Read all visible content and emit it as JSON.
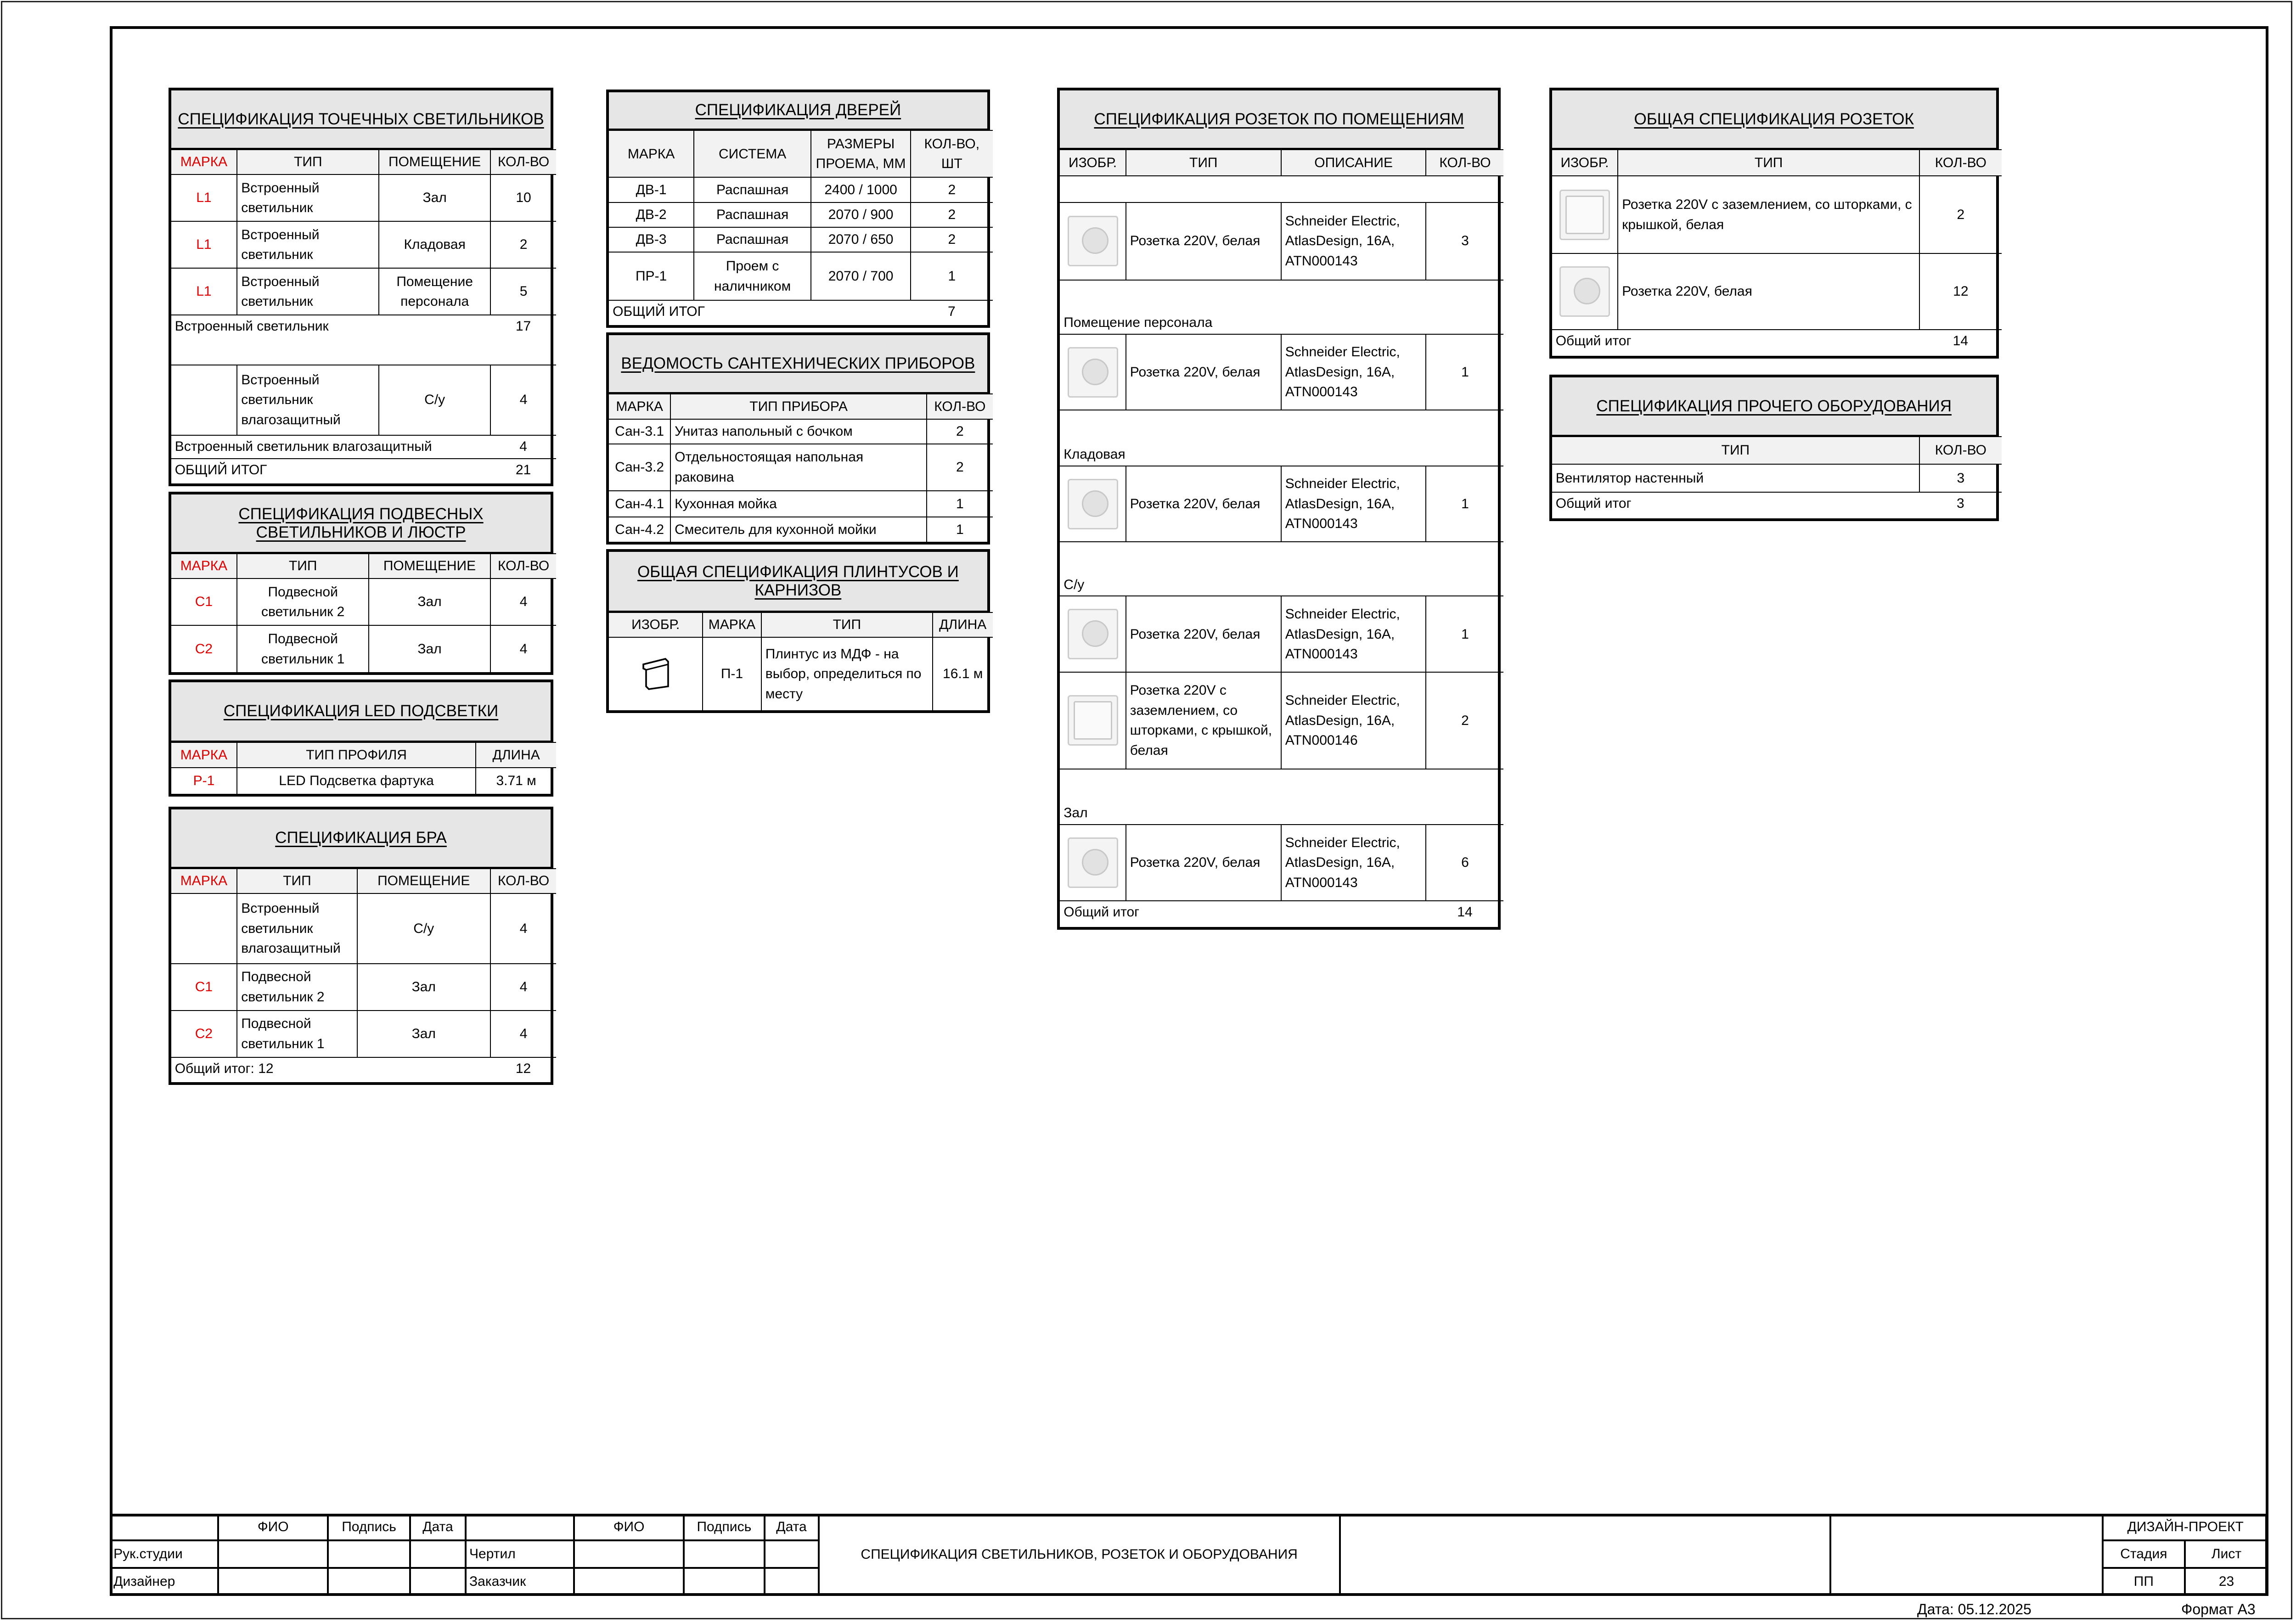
{
  "accent_color": "#e00000",
  "tables": {
    "t1": {
      "title": "СПЕЦИФИКАЦИЯ ТОЧЕЧНЫХ СВЕТИЛЬНИКОВ",
      "columns": [
        "МАРКА",
        "ТИП",
        "ПОМЕЩЕНИЕ",
        "КОЛ-ВО"
      ],
      "rows": [
        {
          "cells": [
            "L1",
            "Встроенный светильник",
            "Зал",
            "10"
          ]
        },
        {
          "cells": [
            "L1",
            "Встроенный светильник",
            "Кладовая",
            "2"
          ]
        },
        {
          "cells": [
            "L1",
            "Встроенный светильник",
            "Помещение персонала",
            "5"
          ]
        },
        {
          "type": "subtotal",
          "label": "Встроенный светильник",
          "value": "17"
        },
        {
          "cells": [
            "",
            "Встроенный светильник влагозащитный",
            "С/у",
            "4"
          ]
        },
        {
          "type": "subtotal",
          "label": "Встроенный светильник влагозащитный",
          "value": "4"
        },
        {
          "type": "subtotal",
          "label": "ОБЩИЙ ИТОГ",
          "value": "21"
        }
      ]
    },
    "t2": {
      "title": "СПЕЦИФИКАЦИЯ ПОДВЕСНЫХ СВЕТИЛЬНИКОВ И ЛЮСТР",
      "columns": [
        "МАРКА",
        "ТИП",
        "ПОМЕЩЕНИЕ",
        "КОЛ-ВО"
      ],
      "rows": [
        {
          "cells": [
            "C1",
            "Подвесной светильник 2",
            "Зал",
            "4"
          ]
        },
        {
          "cells": [
            "C2",
            "Подвесной светильник 1",
            "Зал",
            "4"
          ]
        }
      ]
    },
    "t3": {
      "title": "СПЕЦИФИКАЦИЯ LED ПОДСВЕТКИ",
      "columns": [
        "МАРКА",
        "ТИП ПРОФИЛЯ",
        "ДЛИНА"
      ],
      "rows": [
        {
          "cells": [
            "P-1",
            "LED Подсветка фартука",
            "3.71 м"
          ]
        }
      ]
    },
    "t4": {
      "title": "СПЕЦИФИКАЦИЯ БРА",
      "columns": [
        "МАРКА",
        "ТИП",
        "ПОМЕЩЕНИЕ",
        "КОЛ-ВО"
      ],
      "rows": [
        {
          "cells": [
            "",
            "Встроенный светильник влагозащитный",
            "С/у",
            "4"
          ]
        },
        {
          "cells": [
            "C1",
            "Подвесной светильник 2",
            "Зал",
            "4"
          ]
        },
        {
          "cells": [
            "C2",
            "Подвесной светильник 1",
            "Зал",
            "4"
          ]
        },
        {
          "type": "subtotal",
          "label": "Общий итог: 12",
          "value": "12"
        }
      ]
    },
    "t5": {
      "title": "СПЕЦИФИКАЦИЯ ДВЕРЕЙ",
      "columns": [
        "МАРКА",
        "СИСТЕМА",
        "РАЗМЕРЫ ПРОЕМА, ММ",
        "КОЛ-ВО, ШТ"
      ],
      "rows": [
        {
          "cells": [
            "ДВ-1",
            "Распашная",
            "2400 / 1000",
            "2"
          ]
        },
        {
          "cells": [
            "ДВ-2",
            "Распашная",
            "2070 / 900",
            "2"
          ]
        },
        {
          "cells": [
            "ДВ-3",
            "Распашная",
            "2070 / 650",
            "2"
          ]
        },
        {
          "cells": [
            "ПР-1",
            "Проем с наличником",
            "2070 / 700",
            "1"
          ]
        },
        {
          "type": "subtotal",
          "label": "ОБЩИЙ ИТОГ",
          "value": "7"
        }
      ]
    },
    "t6": {
      "title": "ВЕДОМОСТЬ САНТЕХНИЧЕСКИХ ПРИБОРОВ",
      "columns": [
        "МАРКА",
        "ТИП ПРИБОРА",
        "КОЛ-ВО"
      ],
      "rows": [
        {
          "cells": [
            "Сан-3.1",
            "Унитаз напольный с бочком",
            "2"
          ]
        },
        {
          "cells": [
            "Сан-3.2",
            "Отдельностоящая напольная раковина",
            "2"
          ]
        },
        {
          "cells": [
            "Сан-4.1",
            "Кухонная мойка",
            "1"
          ]
        },
        {
          "cells": [
            "Сан-4.2",
            "Смеситель для кухонной мойки",
            "1"
          ]
        }
      ]
    },
    "t7": {
      "title": "ОБЩАЯ СПЕЦИФИКАЦИЯ ПЛИНТУСОВ И КАРНИЗОВ",
      "columns": [
        "ИЗОБР.",
        "МАРКА",
        "ТИП",
        "ДЛИНА"
      ],
      "rows": [
        {
          "cells": [
            "plinth-icon",
            "П-1",
            "Плинтус из МДФ - на выбор, определиться по месту",
            "16.1 м"
          ]
        }
      ]
    },
    "t8": {
      "title": "СПЕЦИФИКАЦИЯ РОЗЕТОК ПО ПОМЕЩЕНИЯМ",
      "columns": [
        "ИЗОБР.",
        "ТИП",
        "ОПИСАНИЕ",
        "КОЛ-ВО"
      ],
      "rows": [
        {
          "type": "group",
          "label": ""
        },
        {
          "cells": [
            "socket-icon",
            "Розетка 220V, белая",
            "Schneider Electric, AtlasDesign, 16A, ATN000143",
            "3"
          ]
        },
        {
          "type": "group",
          "label": "Помещение персонала"
        },
        {
          "cells": [
            "socket-icon",
            "Розетка 220V, белая",
            "Schneider Electric, AtlasDesign, 16A, ATN000143",
            "1"
          ]
        },
        {
          "type": "group",
          "label": "Кладовая"
        },
        {
          "cells": [
            "socket-icon",
            "Розетка 220V, белая",
            "Schneider Electric, AtlasDesign, 16A, ATN000143",
            "1"
          ]
        },
        {
          "type": "group",
          "label": "С/у"
        },
        {
          "cells": [
            "socket-icon",
            "Розетка 220V, белая",
            "Schneider Electric, AtlasDesign, 16A, ATN000143",
            "1"
          ]
        },
        {
          "cells": [
            "socket-lid-icon",
            "Розетка 220V с заземлением, со шторками, с крышкой, белая",
            "Schneider Electric, AtlasDesign, 16A, ATN000146",
            "2"
          ]
        },
        {
          "type": "group",
          "label": "Зал"
        },
        {
          "cells": [
            "socket-icon",
            "Розетка 220V, белая",
            "Schneider Electric, AtlasDesign, 16A, ATN000143",
            "6"
          ]
        },
        {
          "type": "subtotal",
          "label": "Общий итог",
          "value": "14"
        }
      ]
    },
    "t9": {
      "title": "ОБЩАЯ СПЕЦИФИКАЦИЯ РОЗЕТОК",
      "columns": [
        "ИЗОБР.",
        "ТИП",
        "КОЛ-ВО"
      ],
      "rows": [
        {
          "cells": [
            "socket-lid-icon",
            "Розетка 220V с заземлением, со шторками, с крышкой, белая",
            "2"
          ]
        },
        {
          "cells": [
            "socket-icon",
            "Розетка 220V, белая",
            "12"
          ]
        },
        {
          "type": "subtotal",
          "label": "Общий итог",
          "value": "14"
        }
      ]
    },
    "t10": {
      "title": "СПЕЦИФИКАЦИЯ ПРОЧЕГО ОБОРУДОВАНИЯ",
      "columns": [
        "ТИП",
        "КОЛ-ВО"
      ],
      "rows": [
        {
          "cells": [
            "Вентилятор настенный",
            "3"
          ]
        },
        {
          "type": "subtotal",
          "label": "Общий итог",
          "value": "3"
        }
      ]
    }
  },
  "title_block": {
    "fio": "ФИО",
    "signature": "Подпись",
    "date": "Дата",
    "head_of_studio": "Рук.студии",
    "designer": "Дизайнер",
    "drafted": "Чертил",
    "customer": "Заказчик",
    "sheet_title": "СПЕЦИФИКАЦИЯ СВЕТИЛЬНИКОВ, РОЗЕТОК И ОБОРУДОВАНИЯ",
    "project": "ДИЗАЙН-ПРОЕКТ",
    "stage_label": "Стадия",
    "sheet_label": "Лист",
    "stage": "ПП",
    "sheet": "23"
  },
  "footer": {
    "date": "Дата: 05.12.2025",
    "format": "Формат А3"
  }
}
